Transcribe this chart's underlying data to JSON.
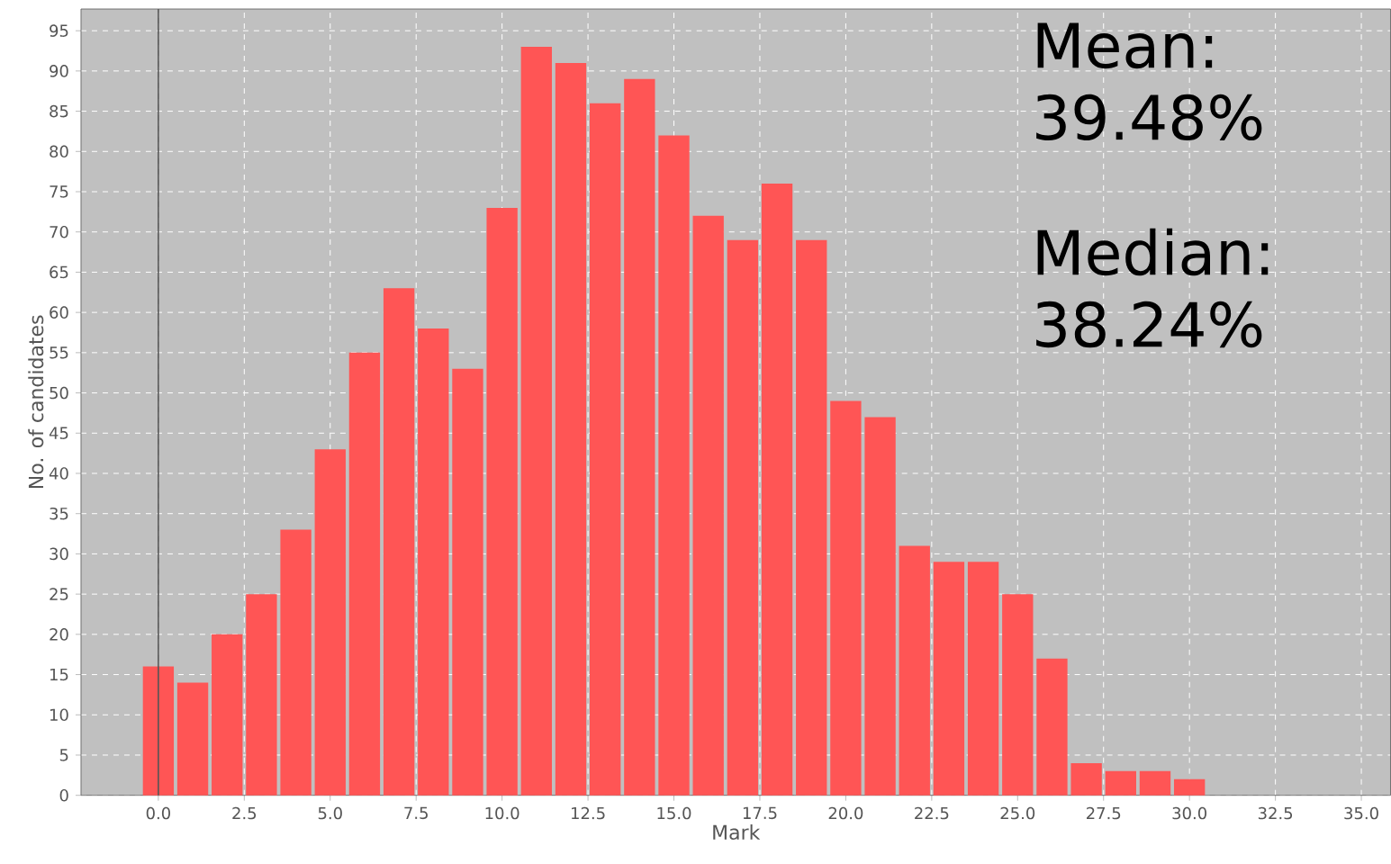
{
  "chart_data": {
    "type": "histogram",
    "xlabel": "Mark",
    "ylabel": "No. of candidates",
    "bins": [
      -0.5,
      0.5,
      1.5,
      2.5,
      3.5,
      4.5,
      5.5,
      6.5,
      7.5,
      8.5,
      9.5,
      10.5,
      11.5,
      12.5,
      13.5,
      14.5,
      15.5,
      16.5,
      17.5,
      18.5,
      19.5,
      20.5,
      21.5,
      22.5,
      23.5,
      24.5,
      25.5,
      26.5,
      27.5,
      28.5,
      29.5,
      30.5
    ],
    "values": [
      16,
      14,
      20,
      25,
      33,
      43,
      55,
      63,
      58,
      53,
      73,
      93,
      91,
      86,
      89,
      82,
      72,
      69,
      76,
      69,
      49,
      47,
      31,
      29,
      29,
      25,
      17,
      4,
      3,
      3,
      2
    ],
    "color": "#ff5555",
    "xlim": [
      -2.25,
      35.85
    ],
    "ylim": [
      0,
      97.7
    ],
    "xticks": [
      {
        "value": 0,
        "label": "0.0"
      },
      {
        "value": 2.5,
        "label": "2.5"
      },
      {
        "value": 5,
        "label": "5.0"
      },
      {
        "value": 7.5,
        "label": "7.5"
      },
      {
        "value": 10,
        "label": "10.0"
      },
      {
        "value": 12.5,
        "label": "12.5"
      },
      {
        "value": 15,
        "label": "15.0"
      },
      {
        "value": 17.5,
        "label": "17.5"
      },
      {
        "value": 20,
        "label": "20.0"
      },
      {
        "value": 22.5,
        "label": "22.5"
      },
      {
        "value": 25,
        "label": "25.0"
      },
      {
        "value": 27.5,
        "label": "27.5"
      },
      {
        "value": 30,
        "label": "30.0"
      },
      {
        "value": 32.5,
        "label": "32.5"
      },
      {
        "value": 35,
        "label": "35.0"
      }
    ],
    "yticks": [
      0,
      5,
      10,
      15,
      20,
      25,
      30,
      35,
      40,
      45,
      50,
      55,
      60,
      65,
      70,
      75,
      80,
      85,
      90,
      95
    ],
    "grid": true,
    "ref_lines": [
      {
        "axis": "x",
        "value": 0,
        "color": "#555555"
      }
    ],
    "annotations": [
      "Mean: 39.48%",
      "Median: 38.24%"
    ]
  }
}
